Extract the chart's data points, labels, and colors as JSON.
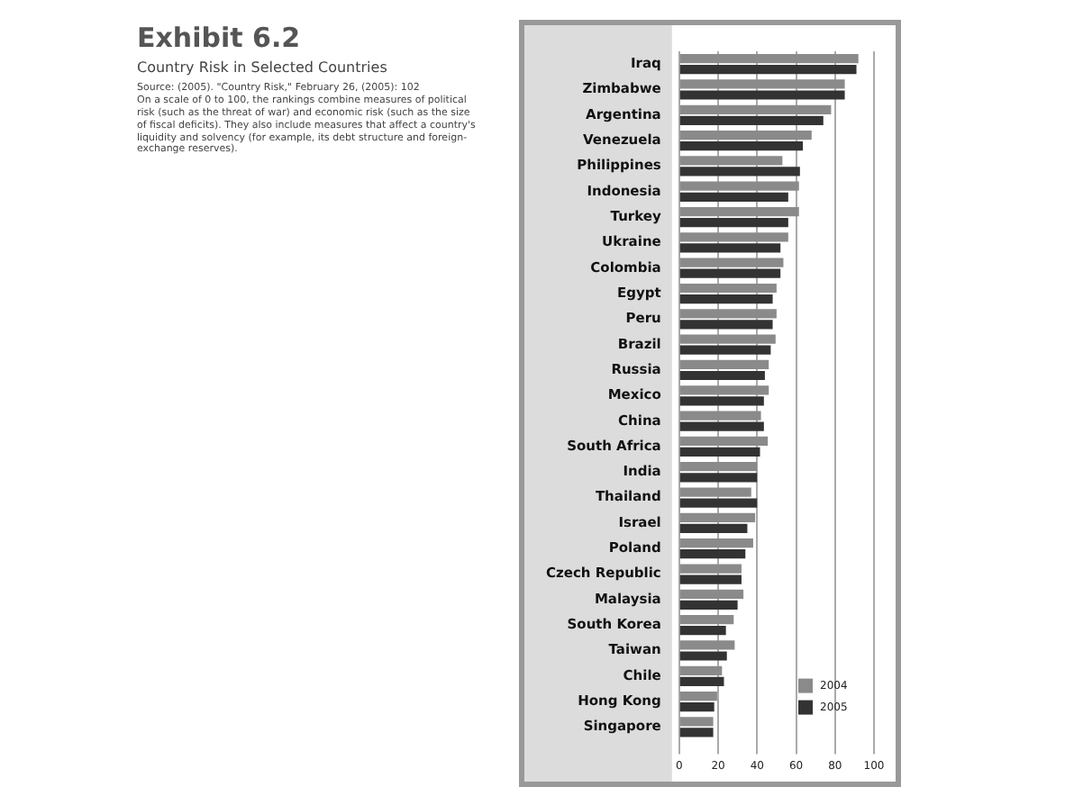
{
  "chart_data": {
    "type": "bar",
    "orientation": "horizontal",
    "title": "Exhibit 6.2",
    "subtitle": "Country Risk in Selected Countries",
    "annotations": [
      "Source: (2005). \"Country Risk,\" February 26, (2005): 102",
      "On a scale of 0 to 100, the rankings combine measures of political risk (such as the threat of war) and economic risk (such as the size of fiscal deficits). They also include measures that affect a country's liquidity and solvency (for example, its debt structure and foreign-exchange reserves)."
    ],
    "categories": [
      "Iraq",
      "Zimbabwe",
      "Argentina",
      "Venezuela",
      "Philippines",
      "Indonesia",
      "Turkey",
      "Ukraine",
      "Colombia",
      "Egypt",
      "Peru",
      "Brazil",
      "Russia",
      "Mexico",
      "China",
      "South Africa",
      "India",
      "Thailand",
      "Israel",
      "Poland",
      "Czech Republic",
      "Malaysia",
      "South Korea",
      "Taiwan",
      "Chile",
      "Hong Kong",
      "Singapore"
    ],
    "series": [
      {
        "name": "2004",
        "color": "#8a8a8a",
        "values": [
          92,
          85,
          78,
          68,
          53,
          61.5,
          61.5,
          56,
          53.5,
          50,
          50,
          49.5,
          46,
          46,
          42,
          45.5,
          40,
          37,
          39,
          38,
          32,
          33,
          28,
          28.5,
          22,
          19.5,
          17.5
        ]
      },
      {
        "name": "2005",
        "color": "#333333",
        "values": [
          91,
          85,
          74,
          63.5,
          62,
          56,
          56,
          52,
          52,
          48,
          48,
          47,
          44,
          43.5,
          43.5,
          41.5,
          40,
          40,
          35,
          34,
          32,
          30,
          24,
          24.5,
          23,
          18,
          17.5
        ]
      }
    ],
    "xlim": [
      0,
      100
    ],
    "xticks": [
      0,
      20,
      40,
      60,
      80,
      100
    ],
    "grid": "x",
    "legend": "bottom right"
  }
}
